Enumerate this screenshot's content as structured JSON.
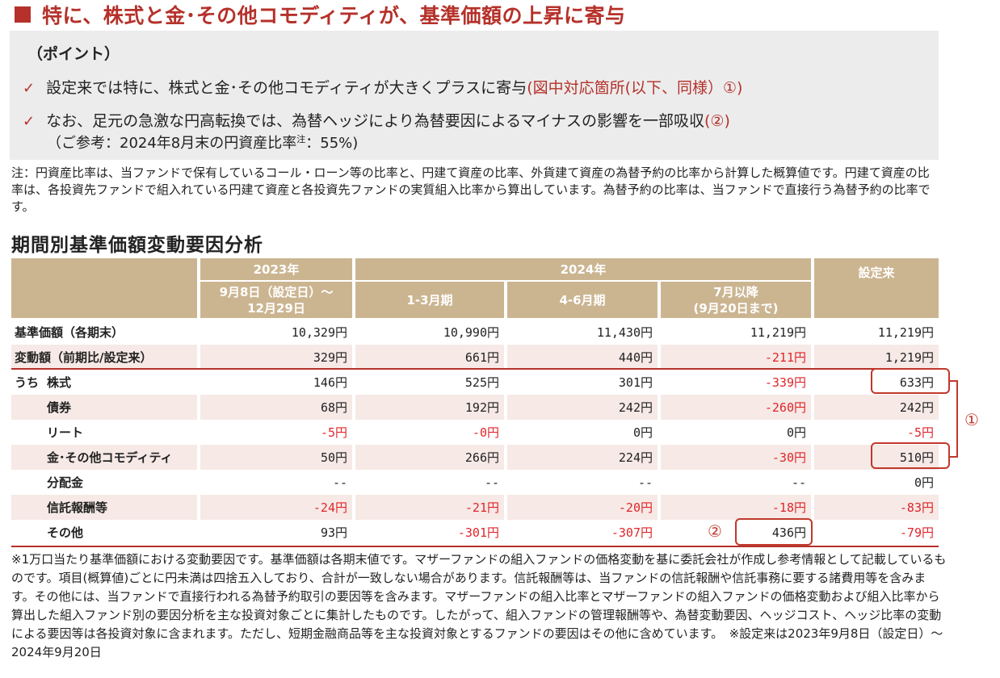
{
  "title": "特に、株式と金･その他コモディティが、基準価額の上昇に寄与",
  "point": {
    "heading": "（ポイント）",
    "line1_main": "設定来では特に、株式と金･その他コモディティが大きくプラスに寄与",
    "line1_red": "(図中対応箇所(以下、同様）①)",
    "line2_main": "なお、足元の急激な円高転換では、為替ヘッジにより為替要因によるマイナスの影響を一部吸収",
    "line2_red": "(②)",
    "sub_main": "（ご参考：2024年8月末の円資産比率",
    "sub_sup": "注",
    "sub_end": "：55%)"
  },
  "note": "注：円資産比率は、当ファンドで保有しているコール・ローン等の比率と、円建て資産の比率、外貨建て資産の為替予約の比率から計算した概算値です。円建て資産の比率は、各投資先ファンドで組入れている円建て資産と各投資先ファンドの実質組入比率から算出しています。為替予約の比率は、当ファンドで直接行う為替予約の比率です。",
  "section_title": "期間別基準価額変動要因分析",
  "table": {
    "h_2023": "2023年",
    "h_2024": "2024年",
    "h_since": "設定来",
    "h_p1": "9月8日（設定日）～\n12月29日",
    "h_p2": "1-3月期",
    "h_p3": "4-6月期",
    "h_p4": "7月以降\n(9月20日まで)",
    "rows": [
      {
        "prefix": "",
        "label": "基準価額（各期末）",
        "values": [
          "10,329円",
          "10,990円",
          "11,430円",
          "11,219円",
          "11,219円"
        ]
      },
      {
        "prefix": "",
        "label": "変動額（前期比/設定来）",
        "values": [
          "329円",
          "661円",
          "440円",
          "-211円",
          "1,219円"
        ]
      },
      {
        "prefix": "うち",
        "label": "株式",
        "values": [
          "146円",
          "525円",
          "301円",
          "-339円",
          "633円"
        ]
      },
      {
        "prefix": "",
        "label": "債券",
        "values": [
          "68円",
          "192円",
          "242円",
          "-260円",
          "242円"
        ]
      },
      {
        "prefix": "",
        "label": "リート",
        "values": [
          "-5円",
          "-0円",
          "0円",
          "0円",
          "-5円"
        ]
      },
      {
        "prefix": "",
        "label": "金･その他コモディティ",
        "values": [
          "50円",
          "266円",
          "224円",
          "-30円",
          "510円"
        ]
      },
      {
        "prefix": "",
        "label": "分配金",
        "values": [
          "--",
          "--",
          "--",
          "--",
          "0円"
        ]
      },
      {
        "prefix": "",
        "label": "信託報酬等",
        "values": [
          "-24円",
          "-21円",
          "-20円",
          "-18円",
          "-83円"
        ]
      },
      {
        "prefix": "",
        "label": "その他",
        "values": [
          "93円",
          "-301円",
          "-307円",
          "436円",
          "-79円"
        ]
      }
    ],
    "marker1": "①",
    "marker2": "②"
  },
  "footnote": "※1万口当たり基準価額における変動要因です。基準価額は各期末値です。マザーファンドの組入ファンドの価格変動を基に委託会社が作成し参考情報として記載しているものです。項目(概算値)ごとに円未満は四捨五入しており、合計が一致しない場合があります。信託報酬等は、当ファンドの信託報酬や信託事務に要する諸費用等を含みます。その他には、当ファンドで直接行われる為替予約取引の要因等を含みます。マザーファンドの組入比率とマザーファンドの組入ファンドの価格変動および組入比率から算出した組入ファンド別の要因分析を主な投資対象ごとに集計したものです。したがって、組入ファンドの管理報酬等や、為替変動要因、ヘッジコスト、ヘッジ比率の変動による要因等は各投資対象に含まれます。ただし、短期金融商品等を主な投資対象とするファンドの要因はその他に含めています。　※設定来は2023年9月8日（設定日）～2024年9月20日",
  "colors": {
    "accent": "#b5312a",
    "header_bg": "#cbb591",
    "row_shade": "#f6e9e6",
    "negative": "#e0252a"
  }
}
